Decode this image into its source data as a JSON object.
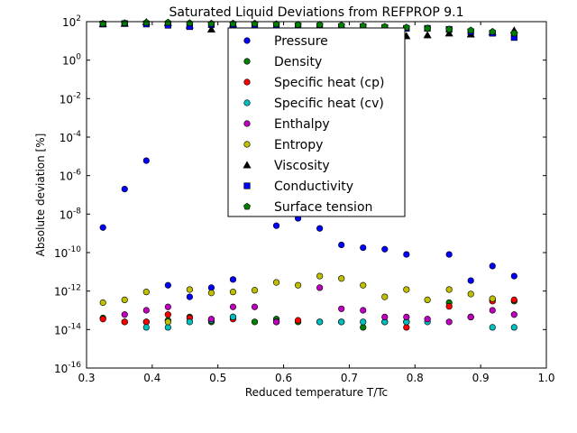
{
  "chart_data": {
    "type": "scatter",
    "title": "Saturated Liquid Deviations from REFPROP 9.1",
    "xlabel": "Reduced temperature T/Tc",
    "ylabel": "Absolute deviation [%]",
    "xlim": [
      0.3,
      1.0
    ],
    "ylim_log10": [
      -16,
      2
    ],
    "y_scale": "log",
    "x_ticks": [
      0.3,
      0.4,
      0.5,
      0.6,
      0.7,
      0.8,
      0.9,
      1.0
    ],
    "x_tick_labels": [
      "0.3",
      "0.4",
      "0.5",
      "0.6",
      "0.7",
      "0.8",
      "0.9",
      "1.0"
    ],
    "y_tick_exponents": [
      -16,
      -14,
      -12,
      -10,
      -8,
      -6,
      -4,
      -2,
      0,
      2
    ],
    "y_tick_labels": [
      "10-16",
      "10-14",
      "10-12",
      "10-10",
      "10-8",
      "10-6",
      "10-4",
      "10-2",
      "100",
      "102"
    ],
    "grid": false,
    "legend_position": "top-center",
    "x": [
      0.325,
      0.358,
      0.391,
      0.424,
      0.457,
      0.49,
      0.523,
      0.556,
      0.589,
      0.622,
      0.655,
      0.688,
      0.721,
      0.754,
      0.787,
      0.819,
      0.852,
      0.885,
      0.918,
      0.951
    ],
    "series": [
      {
        "name": "Pressure",
        "marker": "circle",
        "color": "#0000ff",
        "y": [
          2e-09,
          2e-07,
          6e-06,
          2e-12,
          5e-13,
          1.5e-12,
          4e-12,
          null,
          2.5e-09,
          6e-09,
          1.8e-09,
          2.5e-10,
          1.8e-10,
          1.5e-10,
          8e-11,
          null,
          8e-11,
          3.5e-12,
          2e-11,
          6e-12
        ]
      },
      {
        "name": "Density",
        "marker": "circle",
        "color": "#008000",
        "y": [
          4e-14,
          2.5e-14,
          2.5e-14,
          3e-14,
          4.5e-14,
          2.5e-14,
          4.5e-14,
          2.5e-14,
          3.5e-14,
          2.5e-14,
          2.5e-14,
          2.5e-14,
          1.3e-14,
          2.5e-14,
          2.5e-14,
          null,
          2.5e-13,
          4.5e-14,
          3.5e-13,
          3e-13
        ]
      },
      {
        "name": "Specific heat (cp)",
        "marker": "circle",
        "color": "#ff0000",
        "y": [
          3.5e-14,
          2.5e-14,
          2.5e-14,
          6e-14,
          4e-14,
          3e-14,
          3.5e-14,
          null,
          2.5e-14,
          3e-14,
          null,
          null,
          null,
          null,
          1.3e-14,
          null,
          1.6e-13,
          4.5e-14,
          3e-13,
          3.5e-13
        ]
      },
      {
        "name": "Specific heat (cv)",
        "marker": "circle",
        "color": "#00bfbf",
        "y": [
          null,
          null,
          1.3e-14,
          1.3e-14,
          2.5e-14,
          3e-14,
          4.5e-14,
          null,
          2.5e-14,
          null,
          2.5e-14,
          2.5e-14,
          2.5e-14,
          2.5e-14,
          2.5e-14,
          2.5e-14,
          null,
          null,
          1.3e-14,
          1.3e-14
        ]
      },
      {
        "name": "Enthalpy",
        "marker": "circle",
        "color": "#bf00bf",
        "y": [
          null,
          6e-14,
          1e-13,
          1.5e-13,
          null,
          3.5e-14,
          1.5e-13,
          1.5e-13,
          2.5e-14,
          null,
          1.5e-12,
          1.2e-13,
          1e-13,
          4.5e-14,
          4.5e-14,
          3.5e-14,
          2.5e-14,
          4.5e-14,
          1e-13,
          6e-14
        ]
      },
      {
        "name": "Entropy",
        "marker": "circle",
        "color": "#bfbf00",
        "y": [
          2.5e-13,
          3.5e-13,
          9e-13,
          2.5e-14,
          1.2e-12,
          8e-13,
          9e-13,
          1.1e-12,
          2.8e-12,
          2e-12,
          6e-12,
          4.5e-12,
          2e-12,
          5e-13,
          1.2e-12,
          3.5e-13,
          1.2e-12,
          7e-13,
          4e-13,
          null
        ]
      },
      {
        "name": "Viscosity",
        "marker": "triangle",
        "color": "#000000",
        "y": [
          75,
          80,
          95,
          85,
          65,
          40,
          75,
          60,
          55,
          45,
          50,
          45,
          40,
          25,
          18,
          20,
          25,
          22,
          28,
          35
        ]
      },
      {
        "name": "Conductivity",
        "marker": "square",
        "color": "#0000ff",
        "y": [
          75,
          80,
          75,
          65,
          55,
          70,
          70,
          65,
          60,
          60,
          55,
          55,
          55,
          50,
          45,
          45,
          40,
          30,
          25,
          15
        ]
      },
      {
        "name": "Surface tension",
        "marker": "pentagon",
        "color": "#008000",
        "y": [
          80,
          85,
          90,
          90,
          85,
          80,
          80,
          80,
          75,
          70,
          70,
          65,
          60,
          55,
          50,
          45,
          40,
          35,
          30,
          25
        ]
      }
    ]
  }
}
